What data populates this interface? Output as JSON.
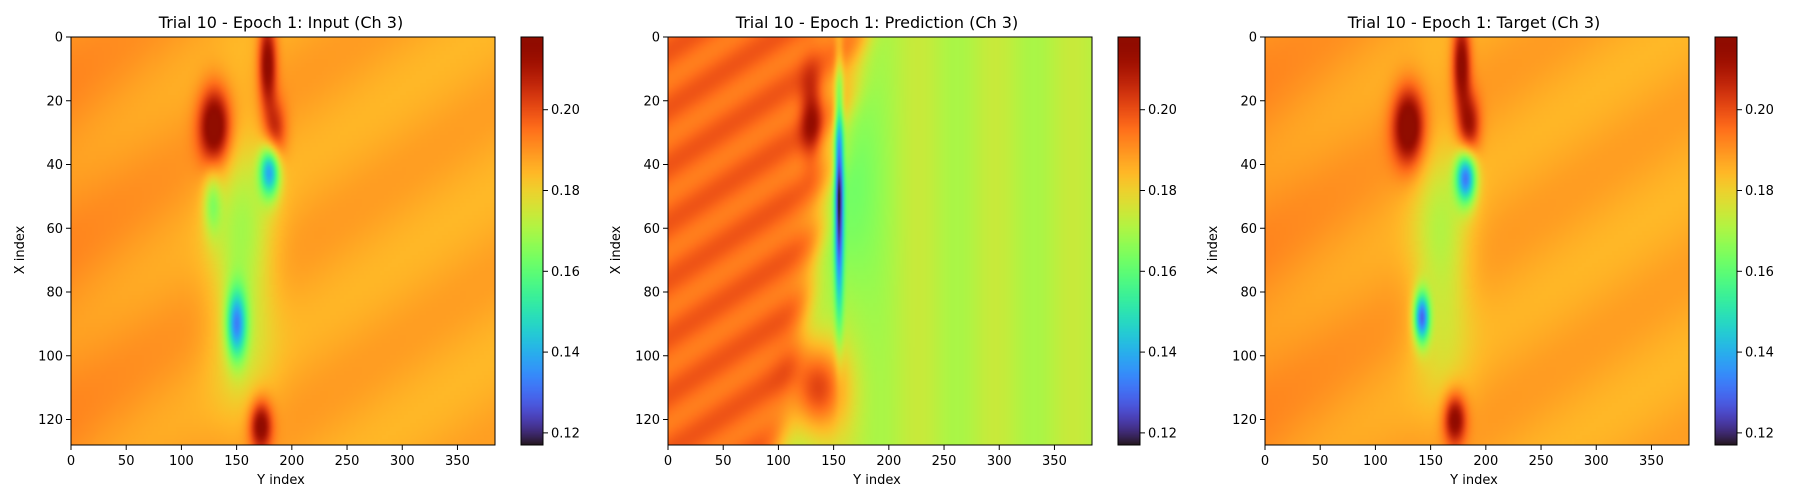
{
  "chart_data": [
    {
      "type": "heatmap",
      "title": "Trial 10 - Epoch 1: Input (Ch 3)",
      "xlabel": "Y index",
      "ylabel": "X index",
      "xlim": [
        0,
        384
      ],
      "ylim": [
        128,
        0
      ],
      "xticks": [
        0,
        50,
        100,
        150,
        200,
        250,
        300,
        350
      ],
      "yticks": [
        0,
        20,
        40,
        60,
        80,
        100,
        120
      ],
      "colorbar": {
        "range": [
          0.117,
          0.218
        ],
        "ticks": [
          0.12,
          0.14,
          0.16,
          0.18,
          0.2
        ],
        "colormap": "turbo"
      },
      "field": {
        "background": 0.186,
        "left_bias": 0.004,
        "blobs": [
          {
            "x": 130,
            "y": 28,
            "rx": 14,
            "ry": 12,
            "v": 0.035
          },
          {
            "x": 178,
            "y": 8,
            "rx": 8,
            "ry": 14,
            "v": 0.03
          },
          {
            "x": 185,
            "y": 30,
            "rx": 10,
            "ry": 10,
            "v": 0.02
          },
          {
            "x": 180,
            "y": 42,
            "rx": 9,
            "ry": 8,
            "v": -0.045
          },
          {
            "x": 150,
            "y": 90,
            "rx": 9,
            "ry": 11,
            "v": -0.042
          },
          {
            "x": 155,
            "y": 70,
            "rx": 28,
            "ry": 40,
            "v": -0.018
          },
          {
            "x": 172,
            "y": 122,
            "rx": 10,
            "ry": 8,
            "v": 0.03
          },
          {
            "x": 128,
            "y": 52,
            "rx": 8,
            "ry": 10,
            "v": -0.016
          }
        ]
      }
    },
    {
      "type": "heatmap",
      "title": "Trial 10 - Epoch 1: Prediction (Ch 3)",
      "xlabel": "Y index",
      "ylabel": "X index",
      "xlim": [
        0,
        384
      ],
      "ylim": [
        128,
        0
      ],
      "xticks": [
        0,
        50,
        100,
        150,
        200,
        250,
        300,
        350
      ],
      "yticks": [
        0,
        20,
        40,
        60,
        80,
        100,
        120
      ],
      "colorbar": {
        "range": [
          0.117,
          0.218
        ],
        "ticks": [
          0.12,
          0.14,
          0.16,
          0.18,
          0.2
        ],
        "colormap": "turbo"
      },
      "field": {
        "left_value": 0.196,
        "right_value": 0.172,
        "front_top": 178,
        "front_bottom": 100,
        "blobs": [
          {
            "x": 135,
            "y": 110,
            "rx": 25,
            "ry": 14,
            "v": 0.03
          },
          {
            "x": 155,
            "y": 50,
            "rx": 4,
            "ry": 35,
            "v": -0.05
          },
          {
            "x": 130,
            "y": 25,
            "rx": 10,
            "ry": 14,
            "v": 0.02
          },
          {
            "x": 160,
            "y": 45,
            "rx": 28,
            "ry": 38,
            "v": -0.012
          }
        ]
      }
    },
    {
      "type": "heatmap",
      "title": "Trial 10 - Epoch 1: Target (Ch 3)",
      "xlabel": "Y index",
      "ylabel": "X index",
      "xlim": [
        0,
        384
      ],
      "ylim": [
        128,
        0
      ],
      "xticks": [
        0,
        50,
        100,
        150,
        200,
        250,
        300,
        350
      ],
      "yticks": [
        0,
        20,
        40,
        60,
        80,
        100,
        120
      ],
      "colorbar": {
        "range": [
          0.117,
          0.218
        ],
        "ticks": [
          0.12,
          0.14,
          0.16,
          0.18,
          0.2
        ],
        "colormap": "turbo"
      },
      "field": {
        "background": 0.186,
        "left_bias": 0.004,
        "blobs": [
          {
            "x": 130,
            "y": 28,
            "rx": 14,
            "ry": 12,
            "v": 0.035
          },
          {
            "x": 178,
            "y": 8,
            "rx": 8,
            "ry": 14,
            "v": 0.03
          },
          {
            "x": 185,
            "y": 28,
            "rx": 10,
            "ry": 10,
            "v": 0.025
          },
          {
            "x": 182,
            "y": 44,
            "rx": 9,
            "ry": 8,
            "v": -0.05
          },
          {
            "x": 142,
            "y": 88,
            "rx": 7,
            "ry": 8,
            "v": -0.052
          },
          {
            "x": 160,
            "y": 70,
            "rx": 26,
            "ry": 38,
            "v": -0.016
          },
          {
            "x": 172,
            "y": 120,
            "rx": 10,
            "ry": 8,
            "v": 0.03
          }
        ]
      }
    }
  ]
}
